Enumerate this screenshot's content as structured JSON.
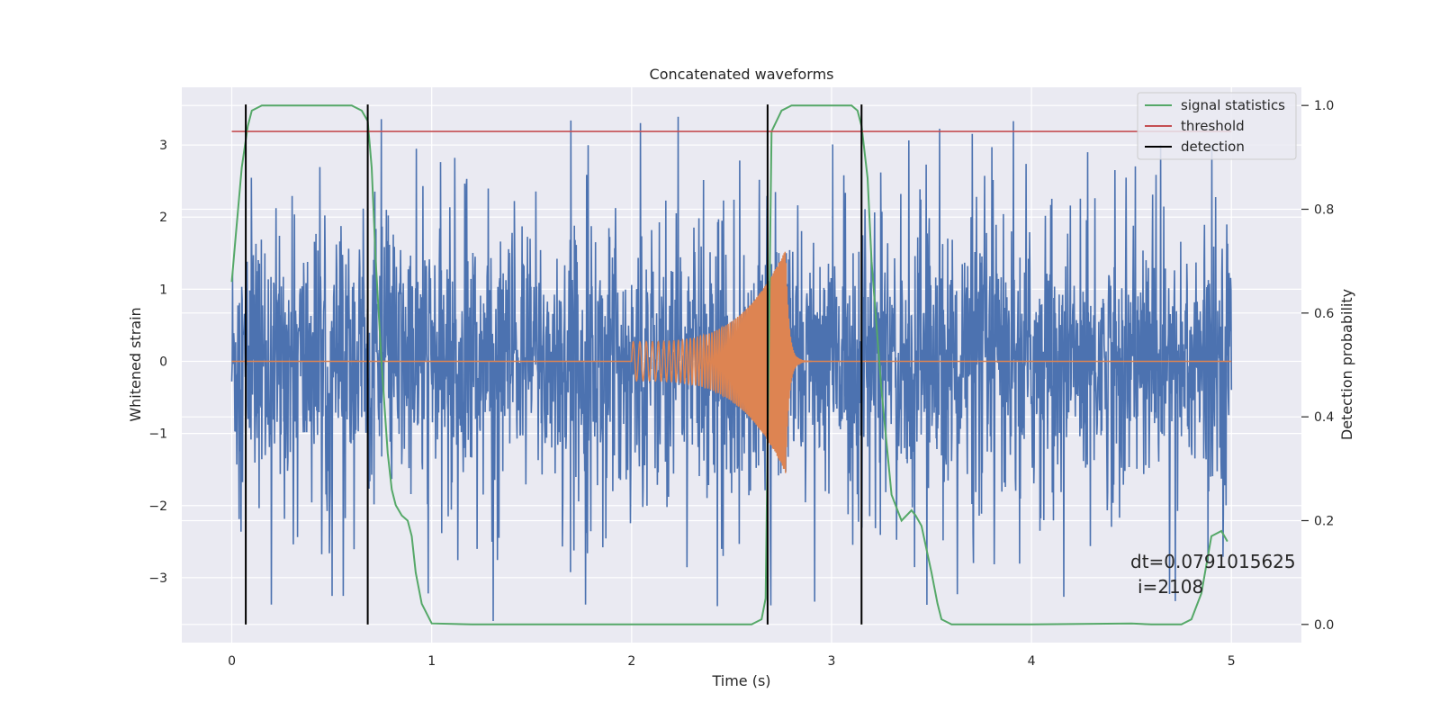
{
  "chart_data": {
    "type": "line",
    "title": "Concatenated waveforms",
    "xlabel": "Time (s)",
    "ylabel": "Whitened strain",
    "ylabel_right": "Detection probability",
    "xlim": [
      -0.25,
      5.35
    ],
    "ylim": [
      -3.9,
      3.8
    ],
    "ylim_right": [
      -0.035,
      1.035
    ],
    "x_ticks": [
      0,
      1,
      2,
      3,
      4,
      5
    ],
    "y_ticks": [
      -3,
      -2,
      -1,
      0,
      1,
      2,
      3
    ],
    "y_ticks_right": [
      0.0,
      0.2,
      0.4,
      0.6,
      0.8,
      1.0
    ],
    "x_tick_labels": [
      "0",
      "1",
      "2",
      "3",
      "4",
      "5"
    ],
    "y_tick_labels": [
      "−3",
      "−2",
      "−1",
      "0",
      "1",
      "2",
      "3"
    ],
    "y_tick_labels_right": [
      "0.0",
      "0.2",
      "0.4",
      "0.6",
      "0.8",
      "1.0"
    ],
    "grid": true,
    "legend_position": "top-right",
    "legend": [
      "signal statistics",
      "threshold",
      "detection"
    ],
    "colors": {
      "background": "#EAEAF2",
      "strain": "#4C72B0",
      "template": "#DD8452",
      "signal_statistics": "#55A868",
      "threshold": "#C44E52",
      "detection": "#000000"
    },
    "strain_noise": {
      "x_range": [
        0,
        5
      ],
      "typical_amplitude": 1.2,
      "peak_max": 3.5,
      "peak_min": -3.6
    },
    "template_waveform": {
      "x_start": 2.0,
      "merger_time": 2.77,
      "amplitude_start": 0.27,
      "amplitude_peak": 1.55,
      "zero_outside": true
    },
    "signal_statistics": {
      "axis": "right",
      "x": [
        0,
        0.02,
        0.05,
        0.08,
        0.1,
        0.15,
        0.2,
        0.3,
        0.5,
        0.6,
        0.65,
        0.68,
        0.7,
        0.72,
        0.75,
        0.78,
        0.8,
        0.82,
        0.85,
        0.88,
        0.9,
        0.92,
        0.95,
        1.0,
        1.2,
        1.5,
        2.0,
        2.3,
        2.5,
        2.6,
        2.65,
        2.67,
        2.7,
        2.75,
        2.8,
        2.9,
        3.0,
        3.1,
        3.13,
        3.15,
        3.18,
        3.2,
        3.25,
        3.3,
        3.35,
        3.4,
        3.42,
        3.45,
        3.5,
        3.53,
        3.55,
        3.6,
        4.0,
        4.5,
        4.6,
        4.7,
        4.75,
        4.8,
        4.85,
        4.9,
        4.95,
        4.98
      ],
      "y": [
        0.66,
        0.75,
        0.88,
        0.96,
        0.99,
        1.0,
        1.0,
        1.0,
        1.0,
        1.0,
        0.99,
        0.97,
        0.88,
        0.7,
        0.5,
        0.33,
        0.26,
        0.23,
        0.21,
        0.2,
        0.17,
        0.1,
        0.04,
        0.002,
        0.0,
        0.0,
        0.0,
        0.0,
        0.0,
        0.0,
        0.01,
        0.05,
        0.95,
        0.99,
        1.0,
        1.0,
        1.0,
        1.0,
        0.99,
        0.96,
        0.86,
        0.7,
        0.45,
        0.25,
        0.2,
        0.22,
        0.21,
        0.19,
        0.1,
        0.04,
        0.01,
        0.0,
        0.0,
        0.002,
        0.0,
        0.0,
        0.0,
        0.01,
        0.06,
        0.17,
        0.18,
        0.16
      ]
    },
    "threshold": {
      "axis": "right",
      "value": 0.95,
      "x_range": [
        0,
        5
      ]
    },
    "detections": [
      0.07,
      0.68,
      2.68,
      3.15
    ],
    "annotation": {
      "text_line1": "dt=0.0791015625",
      "text_line2": "i=2108",
      "x": 4.5,
      "y": -3.2
    }
  }
}
